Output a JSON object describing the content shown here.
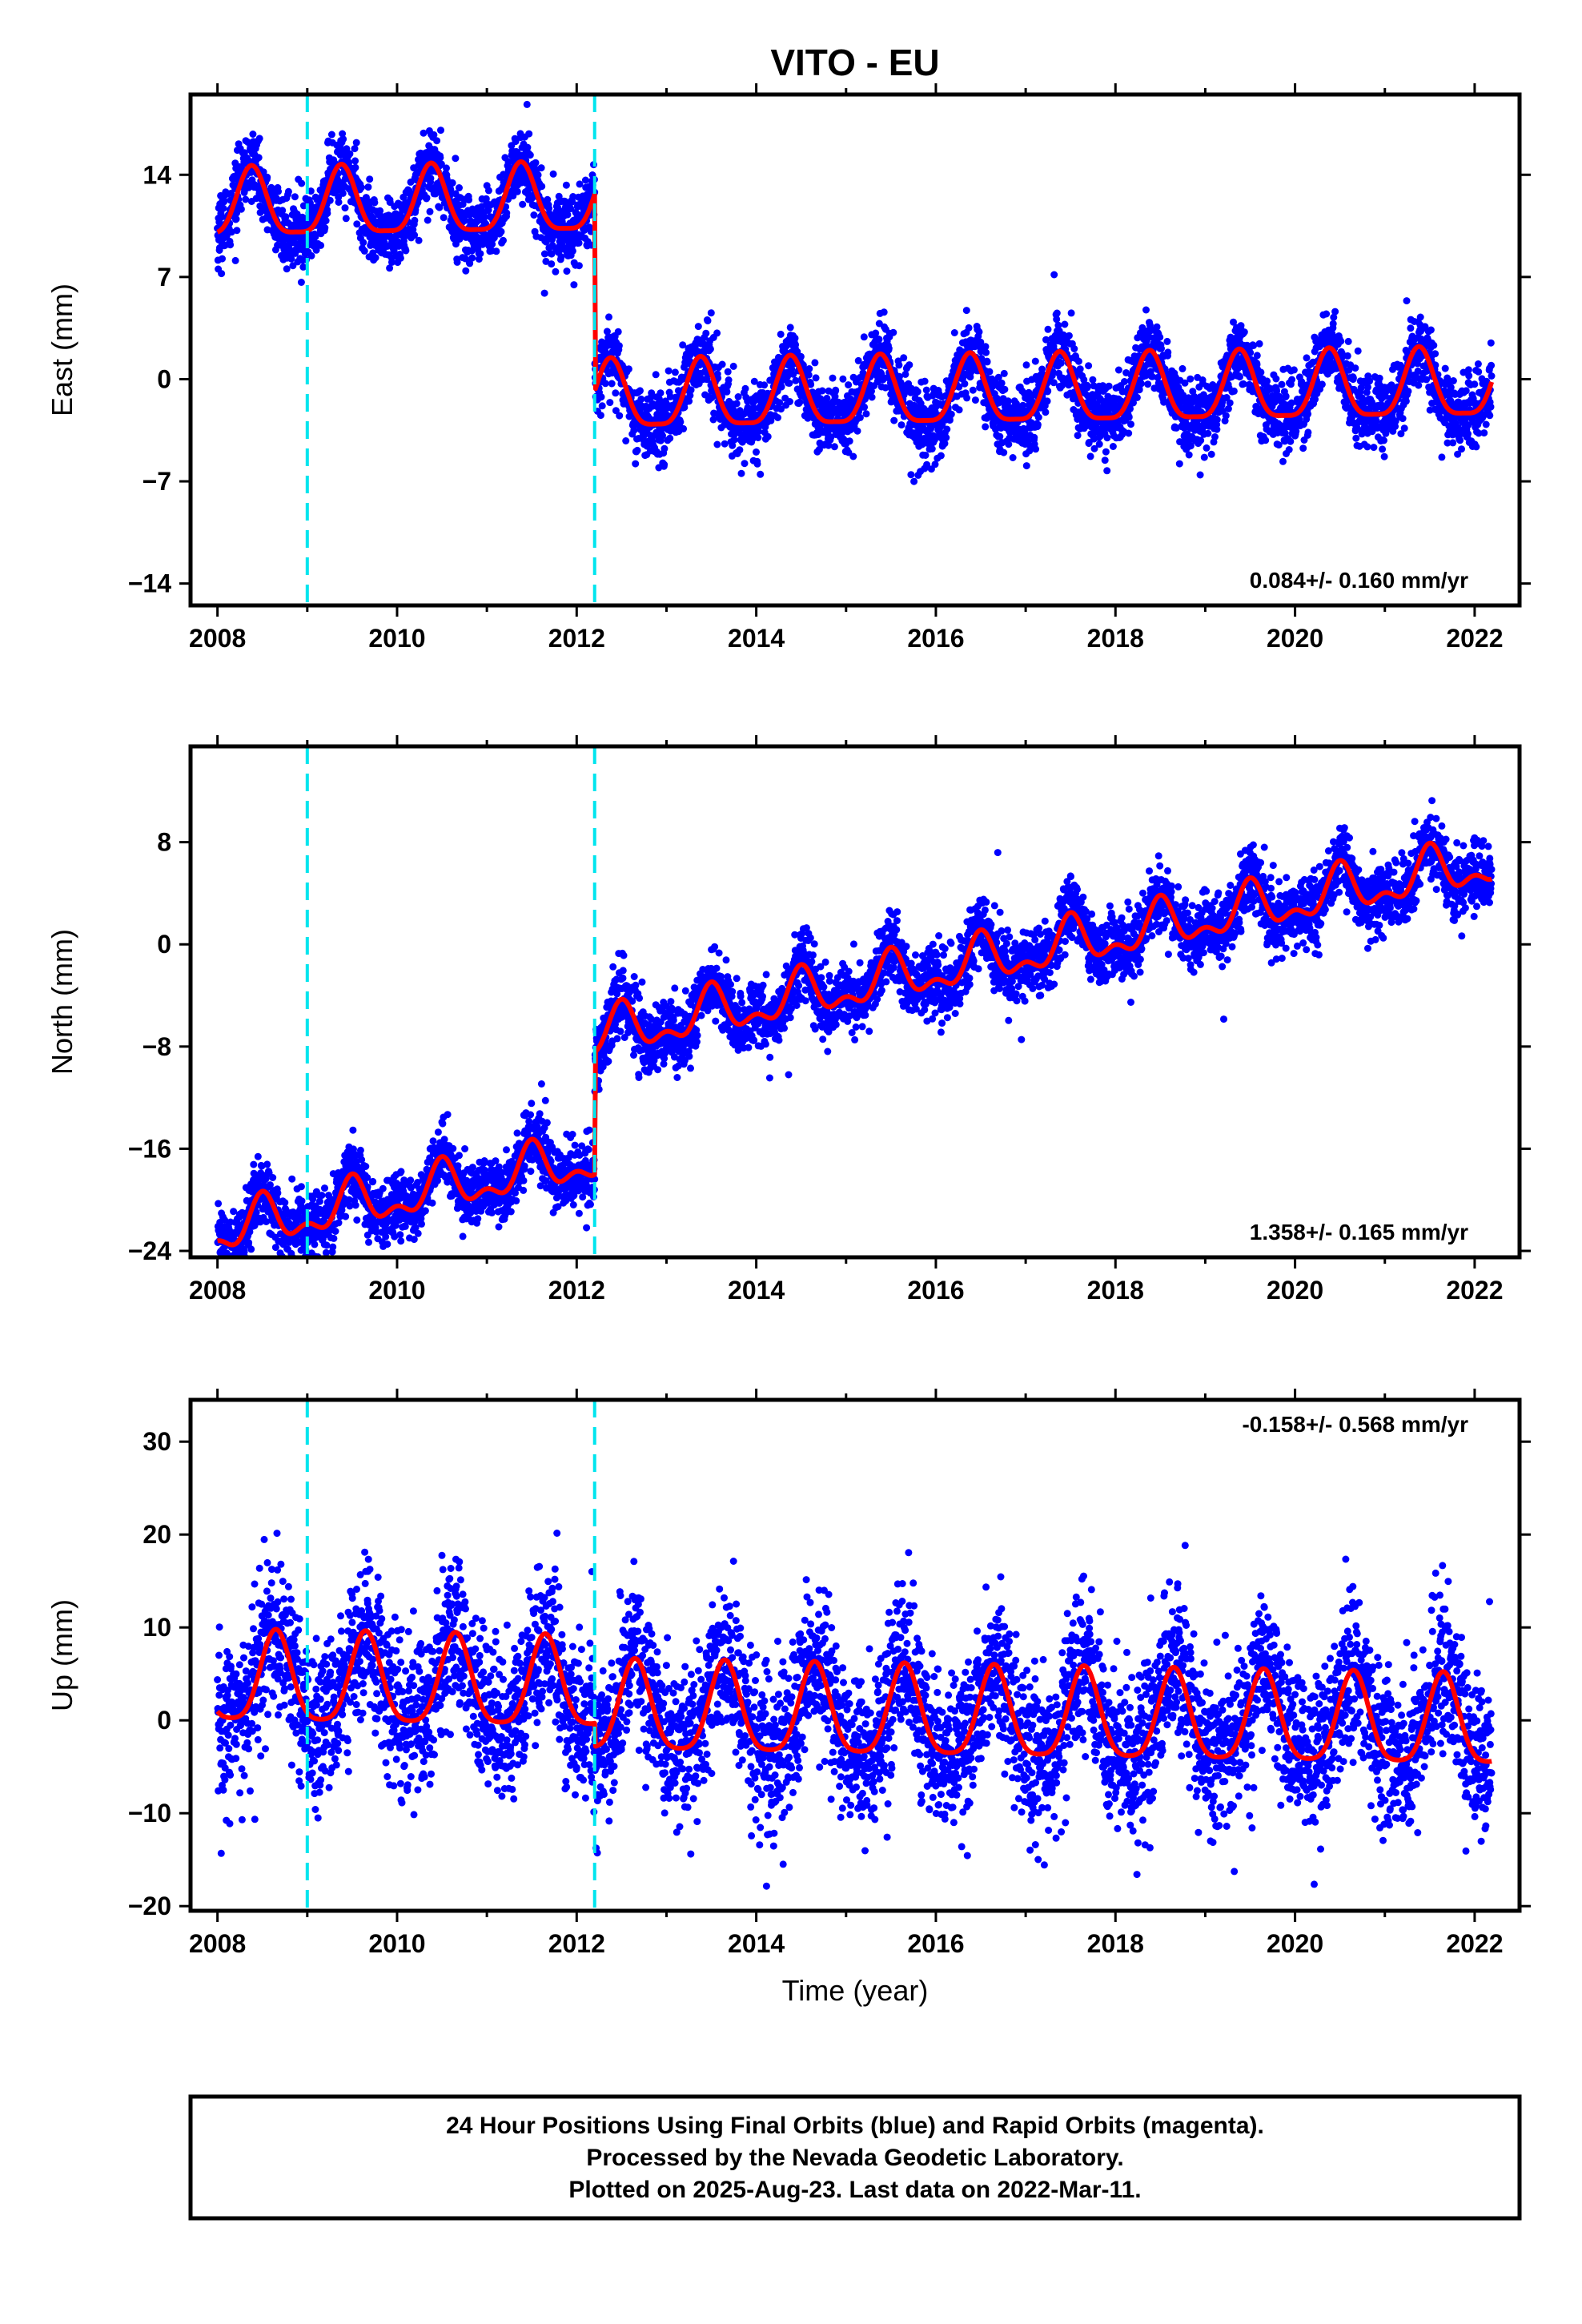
{
  "chart_data": [
    {
      "type": "scatter",
      "title": "VITO - EU",
      "panel": "east",
      "ylabel": "East (mm)",
      "xlabel": "",
      "xlim": [
        2007.7,
        2022.5
      ],
      "ylim": [
        -15.5,
        19.5
      ],
      "xticks": [
        2008,
        2010,
        2012,
        2014,
        2016,
        2018,
        2020,
        2022
      ],
      "yticks": [
        -14,
        -7,
        0,
        7,
        14
      ],
      "rate_label": "0.084+/- 0.160 mm/yr",
      "rate_position": "bottom-right",
      "event_lines_x": [
        2009.0,
        2012.2
      ],
      "model": {
        "offset_before": 12.3,
        "offset_after": -1.2,
        "step_year": 2012.2,
        "trend": 0.084,
        "annual_amp": 2.3,
        "annual_phase_year": 0.38,
        "semiannual_amp": 0.6
      },
      "series": [
        {
          "name": "Final Orbits",
          "color": "#0000ff"
        },
        {
          "name": "Model",
          "color": "#ff0000"
        }
      ]
    },
    {
      "type": "scatter",
      "panel": "north",
      "ylabel": "North (mm)",
      "xlabel": "",
      "xlim": [
        2007.7,
        2022.5
      ],
      "ylim": [
        -24.5,
        15.5
      ],
      "xticks": [
        2008,
        2010,
        2012,
        2014,
        2016,
        2018,
        2020,
        2022
      ],
      "yticks": [
        -24,
        -16,
        -8,
        0,
        8
      ],
      "rate_label": "1.358+/- 0.165 mm/yr",
      "rate_position": "bottom-right",
      "event_lines_x": [
        2009.0,
        2012.2
      ],
      "model": {
        "offset_before": -13.0,
        "offset_after": -3.4,
        "step_year": 2012.2,
        "trend": 1.358,
        "annual_amp": 1.6,
        "annual_phase_year": 0.5,
        "semiannual_amp": 0.9
      },
      "series": [
        {
          "name": "Final Orbits",
          "color": "#0000ff"
        },
        {
          "name": "Model",
          "color": "#ff0000"
        }
      ]
    },
    {
      "type": "scatter",
      "panel": "up",
      "ylabel": "Up (mm)",
      "xlabel": "Time (year)",
      "xlim": [
        2007.7,
        2022.5
      ],
      "ylim": [
        -20.5,
        34.5
      ],
      "xticks": [
        2008,
        2010,
        2012,
        2014,
        2016,
        2018,
        2020,
        2022
      ],
      "yticks": [
        -20,
        -10,
        0,
        10,
        20,
        30
      ],
      "rate_label": "-0.158+/- 0.568 mm/yr",
      "rate_position": "top-right",
      "event_lines_x": [
        2009.0,
        2012.2
      ],
      "model": {
        "offset_before": 3.0,
        "offset_after": 0.5,
        "step_year": 2012.2,
        "trend": -0.158,
        "annual_amp": 4.8,
        "annual_phase_year": 0.65,
        "semiannual_amp": 1.0
      },
      "series": [
        {
          "name": "Final Orbits",
          "color": "#0000ff"
        },
        {
          "name": "Model",
          "color": "#ff0000"
        }
      ]
    }
  ],
  "colors": {
    "points": "#0000ff",
    "model_line": "#ff0000",
    "event_line": "#00e5ee",
    "frame": "#000000"
  },
  "footer": {
    "line1": "24 Hour Positions Using Final Orbits (blue) and Rapid Orbits (magenta).",
    "line2": "Processed by the Nevada Geodetic Laboratory.",
    "line3": "Plotted on 2025-Aug-23. Last data on 2022-Mar-11."
  }
}
